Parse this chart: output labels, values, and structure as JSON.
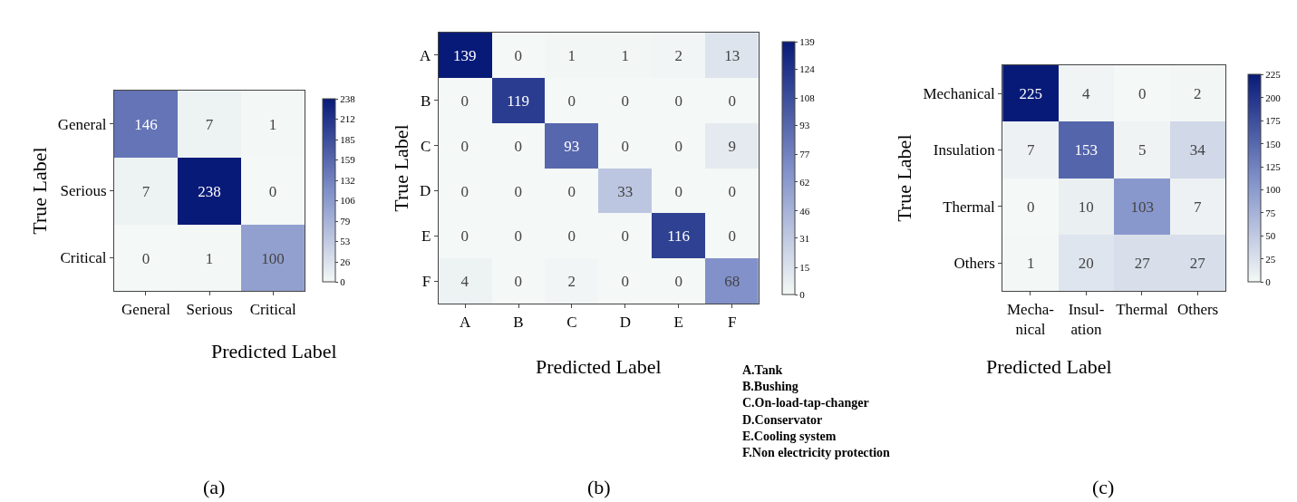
{
  "chart_data": [
    {
      "type": "heatmap",
      "categories": [
        "General",
        "Serious",
        "Critical"
      ],
      "y_categories": [
        "General",
        "Serious",
        "Critical"
      ],
      "cells": [
        [
          146,
          7,
          1
        ],
        [
          7,
          238,
          0
        ],
        [
          0,
          1,
          100
        ]
      ],
      "clim": [
        0,
        238
      ],
      "cticks": [
        0,
        26,
        53,
        79,
        106,
        132,
        159,
        185,
        212,
        238
      ],
      "xlabel": "Predicted Label",
      "ylabel": "True Label",
      "data_labels": true,
      "annotations": [
        "(a)"
      ]
    },
    {
      "type": "heatmap",
      "categories": [
        "A",
        "B",
        "C",
        "D",
        "E",
        "F"
      ],
      "y_categories": [
        "A",
        "B",
        "C",
        "D",
        "E",
        "F"
      ],
      "cells": [
        [
          139,
          0,
          1,
          1,
          2,
          13
        ],
        [
          0,
          119,
          0,
          0,
          0,
          0
        ],
        [
          0,
          0,
          93,
          0,
          0,
          9
        ],
        [
          0,
          0,
          0,
          33,
          0,
          0
        ],
        [
          0,
          0,
          0,
          0,
          116,
          0
        ],
        [
          4,
          0,
          2,
          0,
          0,
          68
        ]
      ],
      "clim": [
        0,
        139
      ],
      "cticks": [
        0,
        15,
        31,
        46,
        62,
        77,
        93,
        108,
        124,
        139
      ],
      "xlabel": "Predicted Label",
      "ylabel": "True Label",
      "data_labels": true,
      "annotations": [
        "A.Tank\nB.Bushing\nC.On-load-tap-changer\nD.Conservator\nE.Cooling system\nF.Non electricity protection",
        "(b)"
      ]
    },
    {
      "type": "heatmap",
      "categories": [
        "Mecha-\nnical",
        "Insul-\nation",
        "Thermal",
        "Others"
      ],
      "y_categories": [
        "Mechanical",
        "Insulation",
        "Thermal",
        "Others"
      ],
      "cells": [
        [
          225,
          4,
          0,
          2
        ],
        [
          7,
          153,
          5,
          34
        ],
        [
          0,
          10,
          103,
          7
        ],
        [
          1,
          20,
          27,
          27
        ]
      ],
      "clim": [
        0,
        225
      ],
      "cticks": [
        0,
        25,
        50,
        75,
        100,
        125,
        150,
        175,
        200,
        225
      ],
      "xlabel": "Predicted Label",
      "ylabel": "True Label",
      "data_labels": true,
      "annotations": [
        "(c)"
      ]
    }
  ]
}
